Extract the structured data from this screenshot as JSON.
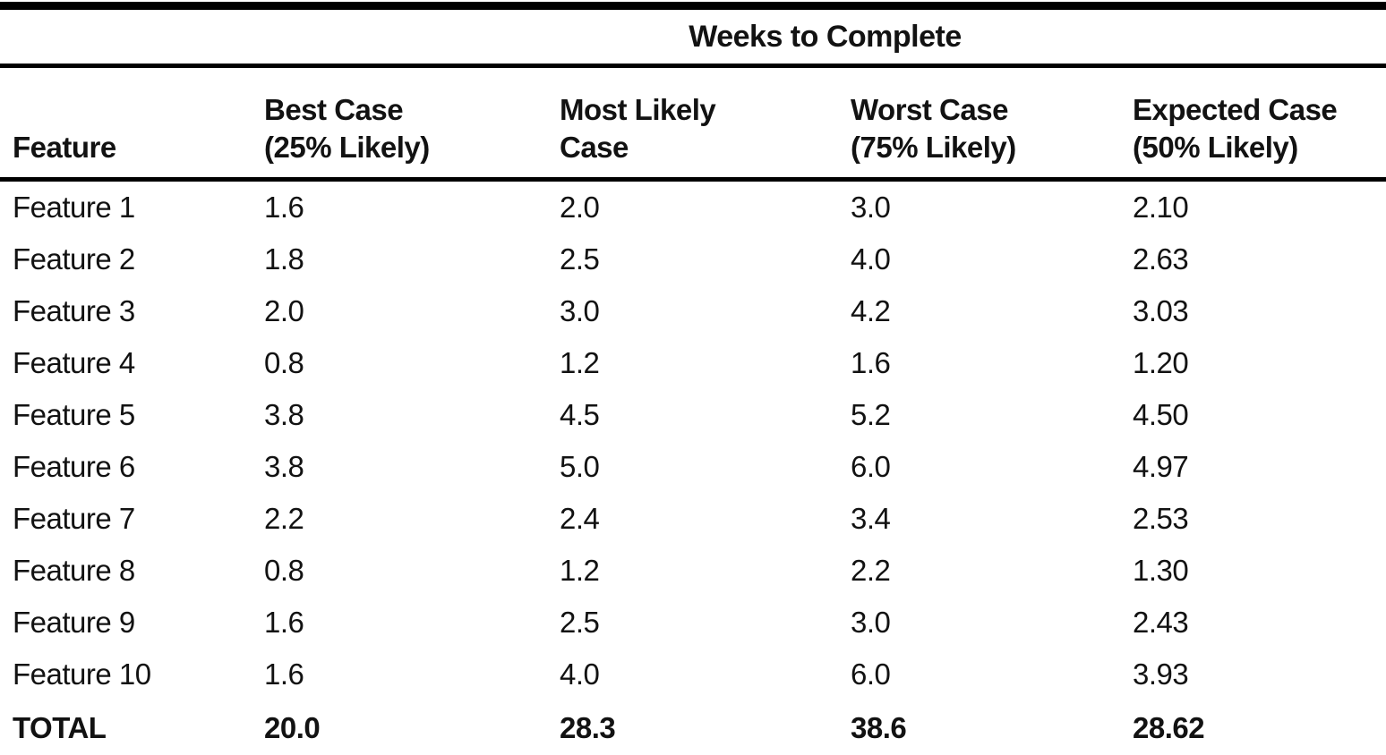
{
  "colors": {
    "background": "#ffffff",
    "text": "#121212",
    "rule": "#000000"
  },
  "table": {
    "title": "Weeks to Complete",
    "headers": {
      "feature": "Feature",
      "best_line1": "Best Case",
      "best_line2": "(25% Likely)",
      "most_likely_line1": "Most Likely",
      "most_likely_line2": "Case",
      "worst_line1": "Worst Case",
      "worst_line2": "(75% Likely)",
      "expected_line1": "Expected Case",
      "expected_line2": "(50% Likely)"
    },
    "rows": [
      {
        "feature": "Feature 1",
        "best": "1.6",
        "most_likely": "2.0",
        "worst": "3.0",
        "expected": "2.10"
      },
      {
        "feature": "Feature 2",
        "best": "1.8",
        "most_likely": "2.5",
        "worst": "4.0",
        "expected": "2.63"
      },
      {
        "feature": "Feature 3",
        "best": "2.0",
        "most_likely": "3.0",
        "worst": "4.2",
        "expected": "3.03"
      },
      {
        "feature": "Feature 4",
        "best": "0.8",
        "most_likely": "1.2",
        "worst": "1.6",
        "expected": "1.20"
      },
      {
        "feature": "Feature 5",
        "best": "3.8",
        "most_likely": "4.5",
        "worst": "5.2",
        "expected": "4.50"
      },
      {
        "feature": "Feature 6",
        "best": "3.8",
        "most_likely": "5.0",
        "worst": "6.0",
        "expected": "4.97"
      },
      {
        "feature": "Feature 7",
        "best": "2.2",
        "most_likely": "2.4",
        "worst": "3.4",
        "expected": "2.53"
      },
      {
        "feature": "Feature 8",
        "best": "0.8",
        "most_likely": "1.2",
        "worst": "2.2",
        "expected": "1.30"
      },
      {
        "feature": "Feature 9",
        "best": "1.6",
        "most_likely": "2.5",
        "worst": "3.0",
        "expected": "2.43"
      },
      {
        "feature": "Feature 10",
        "best": "1.6",
        "most_likely": "4.0",
        "worst": "6.0",
        "expected": "3.93"
      }
    ],
    "total": {
      "feature": "TOTAL",
      "best": "20.0",
      "most_likely": "28.3",
      "worst": "38.6",
      "expected": "28.62"
    }
  }
}
